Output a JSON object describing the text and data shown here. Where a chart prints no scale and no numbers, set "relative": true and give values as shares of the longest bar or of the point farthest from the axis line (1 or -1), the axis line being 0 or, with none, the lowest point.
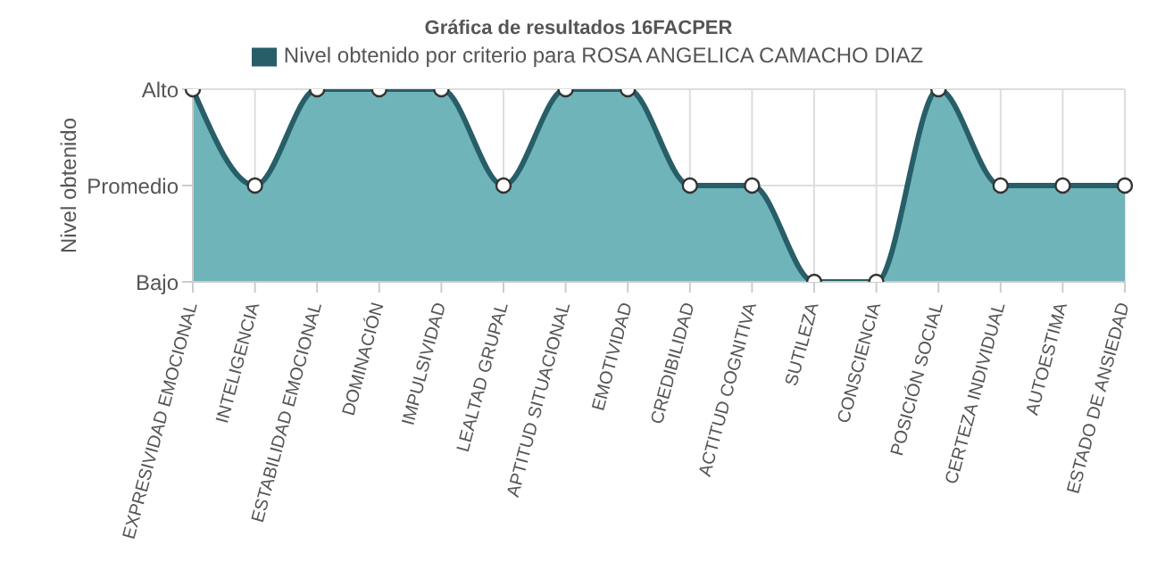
{
  "chart_data": {
    "type": "area",
    "title": "Gráfica de resultados 16FACPER",
    "ylabel": "Nivel obtenido",
    "categories": [
      "EXPRESIVIDAD EMOCIONAL",
      "INTELIGENCIA",
      "ESTABILIDAD EMOCIONAL",
      "DOMINACIÓN",
      "IMPULSIVIDAD",
      "LEALTAD GRUPAL",
      "APTITUD SITUACIONAL",
      "EMOTIVIDAD",
      "CREDIBILIDAD",
      "ACTITUD COGNITIVA",
      "SUTILEZA",
      "CONSCIENCIA",
      "POSICIÓN SOCIAL",
      "CERTEZA INDIVIDUAL",
      "AUTOESTIMA",
      "ESTADO DE ANSIEDAD"
    ],
    "relative": true,
    "annotations": [
      "Alto",
      "Promedio",
      "Bajo"
    ],
    "series": [
      {
        "name": "Nivel obtenido por criterio para ROSA ANGELICA CAMACHO DIAZ",
        "color": "#6fb4b9",
        "values": [
          1,
          0.5,
          1,
          1,
          1,
          0.5,
          1,
          1,
          0.5,
          0.5,
          0,
          0,
          1,
          0.5,
          0.5,
          0.5
        ]
      }
    ],
    "grid": true,
    "legend": "top",
    "marker": "circle"
  }
}
